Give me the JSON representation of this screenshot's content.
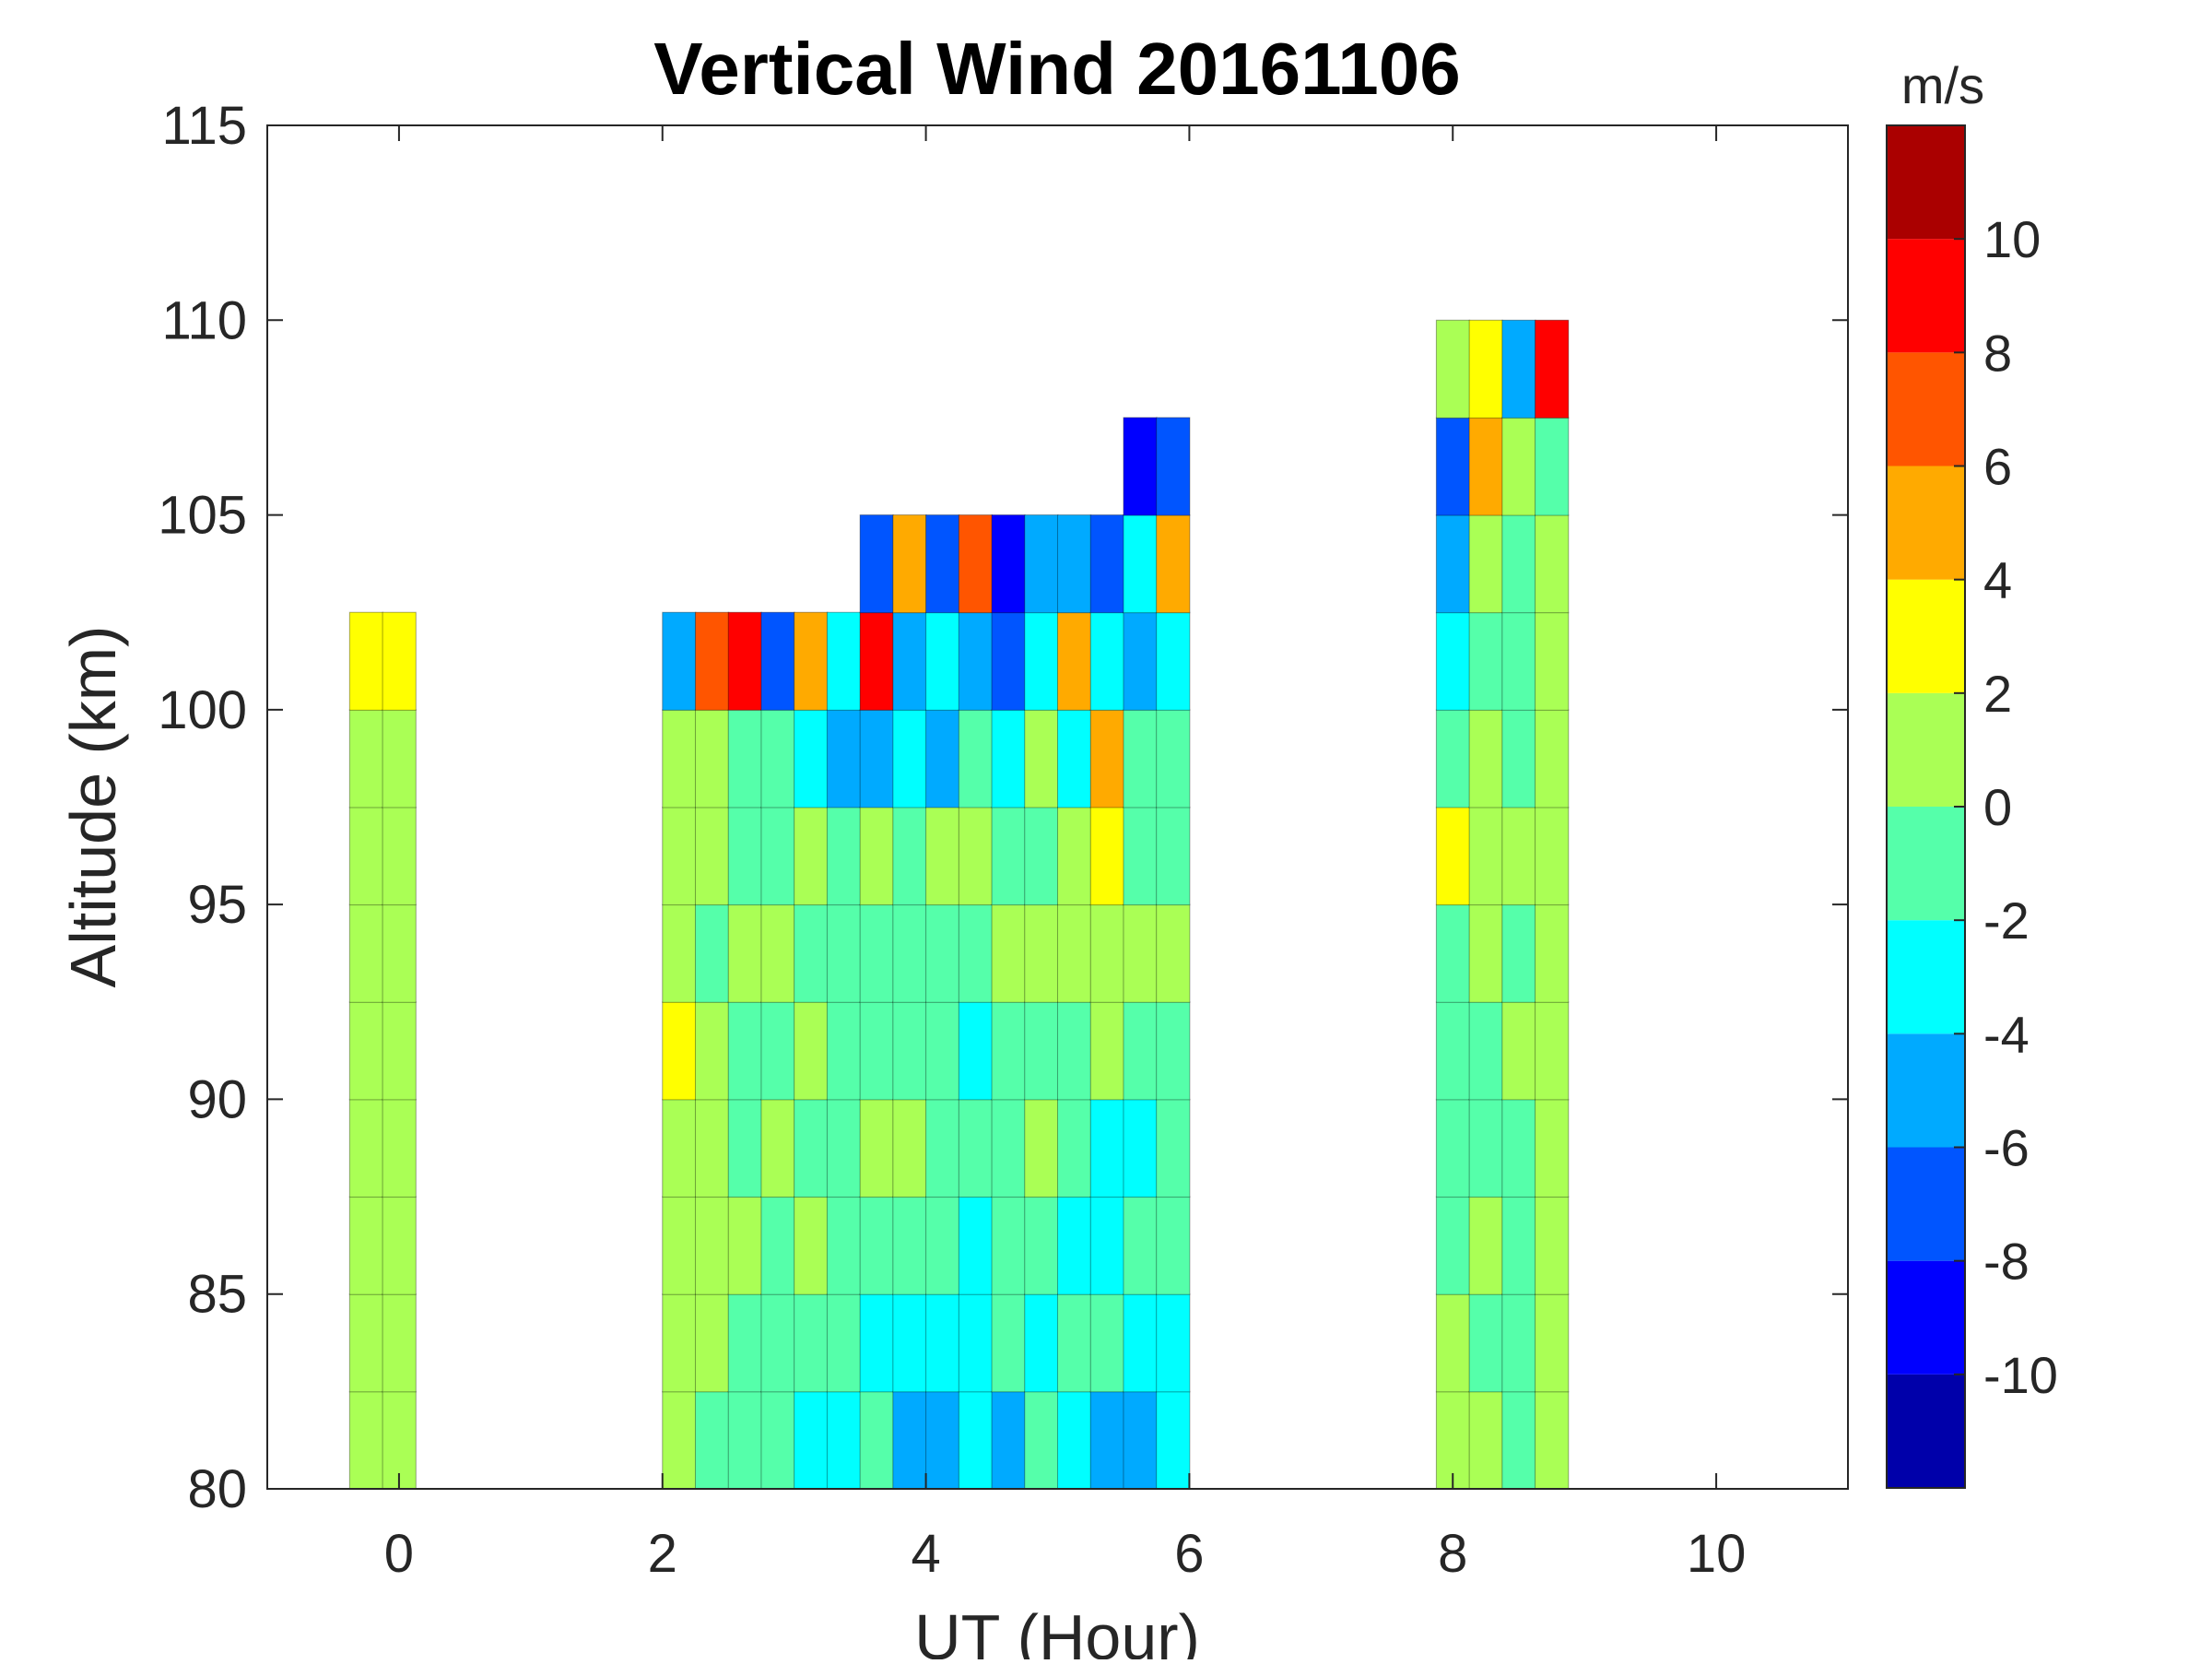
{
  "chart_data": {
    "type": "heatmap",
    "title": "Vertical Wind 20161106",
    "xlabel": "UT (Hour)",
    "ylabel": "Altitude (km)",
    "colorbar_label": "m/s",
    "xlim": [
      -1,
      11
    ],
    "ylim": [
      80,
      115
    ],
    "xticks": [
      0,
      2,
      4,
      6,
      8,
      10
    ],
    "yticks": [
      80,
      85,
      90,
      95,
      100,
      105,
      110,
      115
    ],
    "colorbar_levels": [
      -12,
      -10,
      -8,
      -6,
      -4,
      -2,
      0,
      2,
      4,
      6,
      8,
      10,
      12
    ],
    "colorbar_ticks": [
      -10,
      -8,
      -6,
      -4,
      -2,
      0,
      2,
      4,
      6,
      8,
      10
    ],
    "colorbar_colors": [
      "#0000aa",
      "#0000ff",
      "#0055ff",
      "#00aaff",
      "#00ffff",
      "#55ffaa",
      "#aaff55",
      "#ffff00",
      "#ffaa00",
      "#ff5500",
      "#ff0000",
      "#aa0000"
    ],
    "altitude_centers": [
      81.25,
      83.75,
      86.25,
      88.75,
      91.25,
      93.75,
      96.25,
      98.75,
      101.25,
      103.75,
      106.25,
      108.75
    ],
    "altitude_step": 2.5,
    "columns": [
      {
        "x": -0.25,
        "w": 0.25,
        "values": [
          1,
          1,
          1,
          0.5,
          1,
          1,
          1,
          1,
          2,
          null,
          null,
          null
        ]
      },
      {
        "x": 0.0,
        "w": 0.25,
        "values": [
          0.5,
          1,
          0.5,
          1,
          1,
          1,
          0.5,
          1,
          2.5,
          null,
          null,
          null
        ]
      },
      {
        "x": 2.125,
        "w": 0.25,
        "values": [
          0,
          1,
          1,
          1,
          2,
          1,
          1,
          1,
          -6,
          null,
          null,
          null
        ]
      },
      {
        "x": 2.375,
        "w": 0.25,
        "values": [
          -1,
          1,
          0,
          1,
          1,
          -1,
          1,
          1,
          7,
          null,
          null,
          null
        ]
      },
      {
        "x": 2.625,
        "w": 0.25,
        "values": [
          -1,
          -1,
          1,
          -1,
          -1,
          1,
          -1,
          -1,
          9,
          null,
          null,
          null
        ]
      },
      {
        "x": 2.875,
        "w": 0.25,
        "values": [
          -1,
          -1,
          -1,
          1,
          -1,
          1,
          -1,
          -1,
          -7,
          null,
          null,
          null
        ]
      },
      {
        "x": 3.125,
        "w": 0.25,
        "values": [
          -3,
          -1,
          1,
          -1,
          1,
          -1,
          1,
          -3,
          5,
          null,
          null,
          null
        ]
      },
      {
        "x": 3.375,
        "w": 0.25,
        "values": [
          -3,
          -1,
          -1,
          -1,
          -1,
          -1,
          -1,
          -5,
          -4,
          null,
          null,
          null
        ]
      },
      {
        "x": 3.625,
        "w": 0.25,
        "values": [
          -1,
          -3,
          -1,
          1,
          -1,
          -1,
          1,
          -5,
          9,
          -8,
          null,
          null
        ]
      },
      {
        "x": 3.875,
        "w": 0.25,
        "values": [
          -5,
          -3,
          -1,
          1,
          -1,
          -1,
          -1,
          -3,
          -6,
          5,
          null,
          null
        ]
      },
      {
        "x": 4.125,
        "w": 0.25,
        "values": [
          -6,
          -3,
          -1,
          -1,
          -1,
          -1,
          1,
          -5,
          -3,
          -8,
          null,
          null
        ]
      },
      {
        "x": 4.375,
        "w": 0.25,
        "values": [
          -3,
          -3,
          -3,
          -1,
          -3,
          -1,
          1,
          -1,
          -6,
          7,
          null,
          null
        ]
      },
      {
        "x": 4.625,
        "w": 0.25,
        "values": [
          -5,
          -1,
          -1,
          -1,
          -1,
          1,
          -1,
          -3,
          -7,
          -9,
          null,
          null
        ]
      },
      {
        "x": 4.875,
        "w": 0.25,
        "values": [
          -1,
          -3,
          -1,
          1,
          -1,
          1,
          -1,
          1,
          -3,
          -5,
          null,
          null
        ]
      },
      {
        "x": 5.125,
        "w": 0.25,
        "values": [
          -3,
          -1,
          -3,
          -1,
          -1,
          1,
          1,
          -3,
          5,
          -6,
          null,
          null
        ]
      },
      {
        "x": 5.375,
        "w": 0.25,
        "values": [
          -5,
          -1,
          -3,
          -3,
          1,
          1,
          3,
          5,
          -3,
          -7,
          null,
          null
        ]
      },
      {
        "x": 5.625,
        "w": 0.25,
        "values": [
          -6,
          -3,
          -1,
          -3,
          -1,
          1,
          -1,
          -1,
          -5,
          -3,
          -9,
          null
        ]
      },
      {
        "x": 5.875,
        "w": 0.25,
        "values": [
          -3,
          -3,
          -1,
          -1,
          -1,
          1,
          -1,
          -1,
          -3,
          5,
          -8,
          null
        ]
      },
      {
        "x": 8.0,
        "w": 0.25,
        "values": [
          1,
          1,
          -1,
          -1,
          -1,
          -1,
          3,
          -1,
          -3,
          -5,
          -7,
          1
        ]
      },
      {
        "x": 8.25,
        "w": 0.25,
        "values": [
          1,
          -1,
          1,
          -1,
          -1,
          1,
          1,
          1,
          -1,
          1,
          5,
          3
        ]
      },
      {
        "x": 8.5,
        "w": 0.25,
        "values": [
          -1,
          -1,
          -1,
          -1,
          1,
          -1,
          1,
          -1,
          -1,
          -1,
          1,
          -6
        ]
      },
      {
        "x": 8.75,
        "w": 0.25,
        "values": [
          1,
          1,
          1,
          1,
          1,
          1,
          1,
          1,
          1,
          1,
          -1,
          9
        ]
      }
    ]
  }
}
